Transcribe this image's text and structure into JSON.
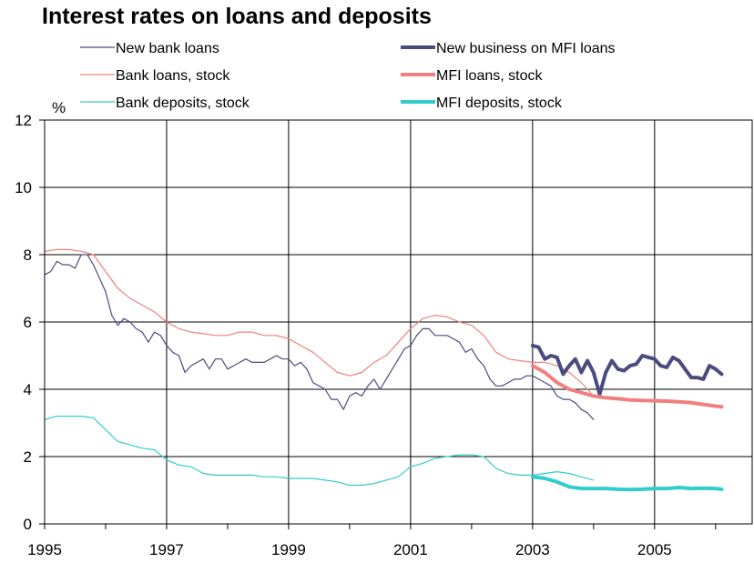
{
  "chart_data": {
    "type": "line",
    "title": "Interest rates on loans and deposits",
    "ylabel": "%",
    "xlabel": "",
    "xlim": [
      1995.0,
      2006.6
    ],
    "ylim": [
      0,
      12
    ],
    "yticks": [
      0,
      2,
      4,
      6,
      8,
      10,
      12
    ],
    "xticks": [
      1995,
      1997,
      1999,
      2001,
      2003,
      2005
    ],
    "xtick_labels": [
      "1995",
      "1997",
      "1999",
      "2001",
      "2003",
      "2005"
    ],
    "x_gridlines": [
      1997,
      1999,
      2001,
      2003,
      2005
    ],
    "y_gridlines": [
      2,
      4,
      6,
      8,
      10
    ],
    "legend_placement": "top",
    "series": [
      {
        "name": "New bank loans",
        "color": "#4b4b7e",
        "width": "thin",
        "points": [
          [
            1995.0,
            7.4
          ],
          [
            1995.1,
            7.5
          ],
          [
            1995.2,
            7.8
          ],
          [
            1995.3,
            7.7
          ],
          [
            1995.4,
            7.7
          ],
          [
            1995.5,
            7.6
          ],
          [
            1995.6,
            8.0
          ],
          [
            1995.7,
            8.0
          ],
          [
            1995.8,
            7.7
          ],
          [
            1995.9,
            7.3
          ],
          [
            1996.0,
            6.9
          ],
          [
            1996.1,
            6.2
          ],
          [
            1996.2,
            5.9
          ],
          [
            1996.3,
            6.1
          ],
          [
            1996.4,
            6.0
          ],
          [
            1996.5,
            5.8
          ],
          [
            1996.6,
            5.7
          ],
          [
            1996.7,
            5.4
          ],
          [
            1996.8,
            5.7
          ],
          [
            1996.9,
            5.6
          ],
          [
            1997.0,
            5.3
          ],
          [
            1997.1,
            5.1
          ],
          [
            1997.2,
            5.0
          ],
          [
            1997.3,
            4.5
          ],
          [
            1997.4,
            4.7
          ],
          [
            1997.5,
            4.8
          ],
          [
            1997.6,
            4.9
          ],
          [
            1997.7,
            4.6
          ],
          [
            1997.8,
            4.9
          ],
          [
            1997.9,
            4.9
          ],
          [
            1998.0,
            4.6
          ],
          [
            1998.1,
            4.7
          ],
          [
            1998.2,
            4.8
          ],
          [
            1998.3,
            4.9
          ],
          [
            1998.4,
            4.8
          ],
          [
            1998.5,
            4.8
          ],
          [
            1998.6,
            4.8
          ],
          [
            1998.7,
            4.9
          ],
          [
            1998.8,
            5.0
          ],
          [
            1998.9,
            4.9
          ],
          [
            1999.0,
            4.9
          ],
          [
            1999.1,
            4.7
          ],
          [
            1999.2,
            4.8
          ],
          [
            1999.3,
            4.6
          ],
          [
            1999.4,
            4.2
          ],
          [
            1999.5,
            4.1
          ],
          [
            1999.6,
            4.0
          ],
          [
            1999.7,
            3.7
          ],
          [
            1999.8,
            3.7
          ],
          [
            1999.9,
            3.4
          ],
          [
            2000.0,
            3.8
          ],
          [
            2000.1,
            3.9
          ],
          [
            2000.2,
            3.8
          ],
          [
            2000.3,
            4.1
          ],
          [
            2000.4,
            4.3
          ],
          [
            2000.5,
            4.0
          ],
          [
            2000.6,
            4.3
          ],
          [
            2000.7,
            4.6
          ],
          [
            2000.8,
            4.9
          ],
          [
            2000.9,
            5.2
          ],
          [
            2001.0,
            5.3
          ],
          [
            2001.1,
            5.6
          ],
          [
            2001.2,
            5.8
          ],
          [
            2001.3,
            5.8
          ],
          [
            2001.4,
            5.6
          ],
          [
            2001.5,
            5.6
          ],
          [
            2001.6,
            5.6
          ],
          [
            2001.7,
            5.5
          ],
          [
            2001.8,
            5.4
          ],
          [
            2001.9,
            5.1
          ],
          [
            2002.0,
            5.2
          ],
          [
            2002.1,
            4.9
          ],
          [
            2002.2,
            4.7
          ],
          [
            2002.3,
            4.3
          ],
          [
            2002.4,
            4.1
          ],
          [
            2002.5,
            4.1
          ],
          [
            2002.6,
            4.2
          ],
          [
            2002.7,
            4.3
          ],
          [
            2002.8,
            4.3
          ],
          [
            2002.9,
            4.4
          ],
          [
            2003.0,
            4.4
          ],
          [
            2003.1,
            4.3
          ],
          [
            2003.2,
            4.2
          ],
          [
            2003.3,
            4.1
          ],
          [
            2003.4,
            3.8
          ],
          [
            2003.5,
            3.7
          ],
          [
            2003.6,
            3.7
          ],
          [
            2003.7,
            3.6
          ],
          [
            2003.8,
            3.4
          ],
          [
            2003.9,
            3.3
          ],
          [
            2004.0,
            3.1
          ]
        ]
      },
      {
        "name": "Bank loans, stock",
        "color": "#f08080",
        "width": "thin",
        "points": [
          [
            1995.0,
            8.1
          ],
          [
            1995.2,
            8.15
          ],
          [
            1995.4,
            8.15
          ],
          [
            1995.6,
            8.1
          ],
          [
            1995.8,
            8.0
          ],
          [
            1996.0,
            7.5
          ],
          [
            1996.2,
            7.0
          ],
          [
            1996.4,
            6.7
          ],
          [
            1996.6,
            6.5
          ],
          [
            1996.8,
            6.3
          ],
          [
            1997.0,
            6.0
          ],
          [
            1997.2,
            5.8
          ],
          [
            1997.4,
            5.7
          ],
          [
            1997.6,
            5.65
          ],
          [
            1997.8,
            5.6
          ],
          [
            1998.0,
            5.6
          ],
          [
            1998.2,
            5.7
          ],
          [
            1998.4,
            5.7
          ],
          [
            1998.6,
            5.6
          ],
          [
            1998.8,
            5.6
          ],
          [
            1999.0,
            5.5
          ],
          [
            1999.2,
            5.3
          ],
          [
            1999.4,
            5.1
          ],
          [
            1999.6,
            4.8
          ],
          [
            1999.8,
            4.5
          ],
          [
            2000.0,
            4.4
          ],
          [
            2000.2,
            4.5
          ],
          [
            2000.4,
            4.8
          ],
          [
            2000.6,
            5.0
          ],
          [
            2000.8,
            5.4
          ],
          [
            2001.0,
            5.8
          ],
          [
            2001.2,
            6.1
          ],
          [
            2001.4,
            6.2
          ],
          [
            2001.6,
            6.15
          ],
          [
            2001.8,
            6.0
          ],
          [
            2002.0,
            5.9
          ],
          [
            2002.2,
            5.6
          ],
          [
            2002.4,
            5.1
          ],
          [
            2002.6,
            4.9
          ],
          [
            2002.8,
            4.85
          ],
          [
            2003.0,
            4.8
          ],
          [
            2003.2,
            4.8
          ],
          [
            2003.4,
            4.7
          ],
          [
            2003.6,
            4.5
          ],
          [
            2003.8,
            4.2
          ],
          [
            2004.0,
            3.8
          ]
        ]
      },
      {
        "name": "Bank deposits, stock",
        "color": "#33cccc",
        "width": "thin",
        "points": [
          [
            1995.0,
            3.1
          ],
          [
            1995.2,
            3.2
          ],
          [
            1995.4,
            3.2
          ],
          [
            1995.6,
            3.2
          ],
          [
            1995.8,
            3.15
          ],
          [
            1996.0,
            2.8
          ],
          [
            1996.2,
            2.45
          ],
          [
            1996.4,
            2.35
          ],
          [
            1996.6,
            2.25
          ],
          [
            1996.8,
            2.2
          ],
          [
            1997.0,
            1.9
          ],
          [
            1997.2,
            1.75
          ],
          [
            1997.4,
            1.7
          ],
          [
            1997.6,
            1.5
          ],
          [
            1997.8,
            1.45
          ],
          [
            1998.0,
            1.45
          ],
          [
            1998.2,
            1.45
          ],
          [
            1998.4,
            1.45
          ],
          [
            1998.6,
            1.4
          ],
          [
            1998.8,
            1.4
          ],
          [
            1999.0,
            1.35
          ],
          [
            1999.2,
            1.35
          ],
          [
            1999.4,
            1.35
          ],
          [
            1999.6,
            1.3
          ],
          [
            1999.8,
            1.25
          ],
          [
            2000.0,
            1.15
          ],
          [
            2000.2,
            1.15
          ],
          [
            2000.4,
            1.2
          ],
          [
            2000.6,
            1.3
          ],
          [
            2000.8,
            1.4
          ],
          [
            2001.0,
            1.7
          ],
          [
            2001.2,
            1.8
          ],
          [
            2001.4,
            1.95
          ],
          [
            2001.6,
            2.0
          ],
          [
            2001.8,
            2.05
          ],
          [
            2002.0,
            2.05
          ],
          [
            2002.2,
            2.0
          ],
          [
            2002.4,
            1.65
          ],
          [
            2002.6,
            1.5
          ],
          [
            2002.8,
            1.45
          ],
          [
            2003.0,
            1.45
          ],
          [
            2003.2,
            1.5
          ],
          [
            2003.4,
            1.55
          ],
          [
            2003.6,
            1.5
          ],
          [
            2003.8,
            1.4
          ],
          [
            2004.0,
            1.3
          ]
        ]
      },
      {
        "name": "New business on MFI loans",
        "color": "#4b4b7e",
        "width": "thick",
        "points": [
          [
            2003.0,
            5.3
          ],
          [
            2003.1,
            5.25
          ],
          [
            2003.2,
            4.9
          ],
          [
            2003.3,
            5.0
          ],
          [
            2003.4,
            4.95
          ],
          [
            2003.5,
            4.45
          ],
          [
            2003.6,
            4.7
          ],
          [
            2003.7,
            4.9
          ],
          [
            2003.8,
            4.5
          ],
          [
            2003.9,
            4.85
          ],
          [
            2004.0,
            4.5
          ],
          [
            2004.1,
            3.85
          ],
          [
            2004.2,
            4.5
          ],
          [
            2004.3,
            4.85
          ],
          [
            2004.4,
            4.6
          ],
          [
            2004.5,
            4.55
          ],
          [
            2004.6,
            4.7
          ],
          [
            2004.7,
            4.75
          ],
          [
            2004.8,
            5.0
          ],
          [
            2004.9,
            4.95
          ],
          [
            2005.0,
            4.9
          ],
          [
            2005.1,
            4.7
          ],
          [
            2005.2,
            4.65
          ],
          [
            2005.3,
            4.95
          ],
          [
            2005.4,
            4.85
          ],
          [
            2005.5,
            4.6
          ],
          [
            2005.6,
            4.35
          ],
          [
            2005.7,
            4.35
          ],
          [
            2005.8,
            4.3
          ],
          [
            2005.9,
            4.7
          ],
          [
            2006.0,
            4.6
          ],
          [
            2006.1,
            4.45
          ]
        ]
      },
      {
        "name": "MFI loans, stock",
        "color": "#f08080",
        "width": "thick",
        "points": [
          [
            2003.0,
            4.7
          ],
          [
            2003.2,
            4.5
          ],
          [
            2003.4,
            4.2
          ],
          [
            2003.6,
            4.0
          ],
          [
            2003.8,
            3.9
          ],
          [
            2004.0,
            3.8
          ],
          [
            2004.2,
            3.75
          ],
          [
            2004.4,
            3.72
          ],
          [
            2004.6,
            3.68
          ],
          [
            2004.8,
            3.67
          ],
          [
            2005.0,
            3.66
          ],
          [
            2005.2,
            3.65
          ],
          [
            2005.4,
            3.63
          ],
          [
            2005.6,
            3.6
          ],
          [
            2005.8,
            3.55
          ],
          [
            2006.0,
            3.5
          ],
          [
            2006.1,
            3.48
          ]
        ]
      },
      {
        "name": "MFI deposits, stock",
        "color": "#33cccc",
        "width": "thick",
        "points": [
          [
            2003.0,
            1.4
          ],
          [
            2003.2,
            1.35
          ],
          [
            2003.4,
            1.25
          ],
          [
            2003.6,
            1.1
          ],
          [
            2003.8,
            1.05
          ],
          [
            2004.0,
            1.05
          ],
          [
            2004.2,
            1.05
          ],
          [
            2004.4,
            1.03
          ],
          [
            2004.6,
            1.02
          ],
          [
            2004.8,
            1.03
          ],
          [
            2005.0,
            1.05
          ],
          [
            2005.2,
            1.05
          ],
          [
            2005.4,
            1.08
          ],
          [
            2005.6,
            1.05
          ],
          [
            2005.8,
            1.06
          ],
          [
            2006.0,
            1.05
          ],
          [
            2006.1,
            1.03
          ]
        ]
      }
    ]
  }
}
